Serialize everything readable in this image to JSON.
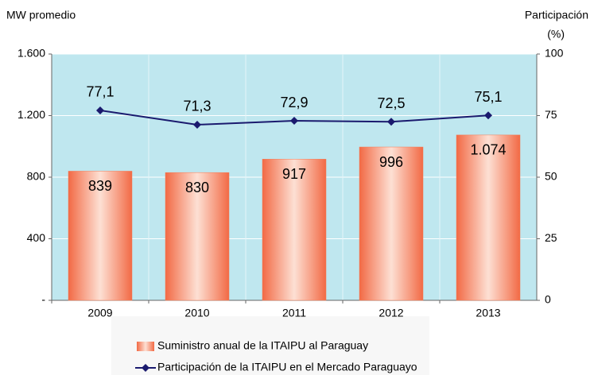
{
  "chart_data": {
    "type": "bar",
    "y_label": "MW promedio",
    "y2_label": [
      "Participación",
      "(%)"
    ],
    "categories": [
      "2009",
      "2010",
      "2011",
      "2012",
      "2013"
    ],
    "series": [
      {
        "name": "Suministro anual de la ITAIPU al Paraguay",
        "type": "bar",
        "color": "#f47a55",
        "values": [
          839,
          830,
          917,
          996,
          1074
        ],
        "value_labels": [
          "839",
          "830",
          "917",
          "996",
          "1.074"
        ]
      },
      {
        "name": "Participación de la ITAIPU en el Mercado Paraguayo",
        "type": "line",
        "axis": "y2",
        "color": "#1a1a6e",
        "values": [
          77.1,
          71.3,
          72.9,
          72.5,
          75.1
        ],
        "value_labels": [
          "77,1",
          "71,3",
          "72,9",
          "72,5",
          "75,1"
        ]
      }
    ],
    "ylim": [
      0,
      1600
    ],
    "yticks": [
      {
        "value": 0,
        "label": "-"
      },
      400,
      800,
      {
        "value": 1200,
        "label": "1.200"
      },
      {
        "value": 1600,
        "label": "1.600"
      }
    ],
    "y2lim": [
      0,
      100
    ],
    "y2ticks": [
      0,
      25,
      50,
      75,
      100
    ],
    "grid": true,
    "legend": "bottom"
  }
}
